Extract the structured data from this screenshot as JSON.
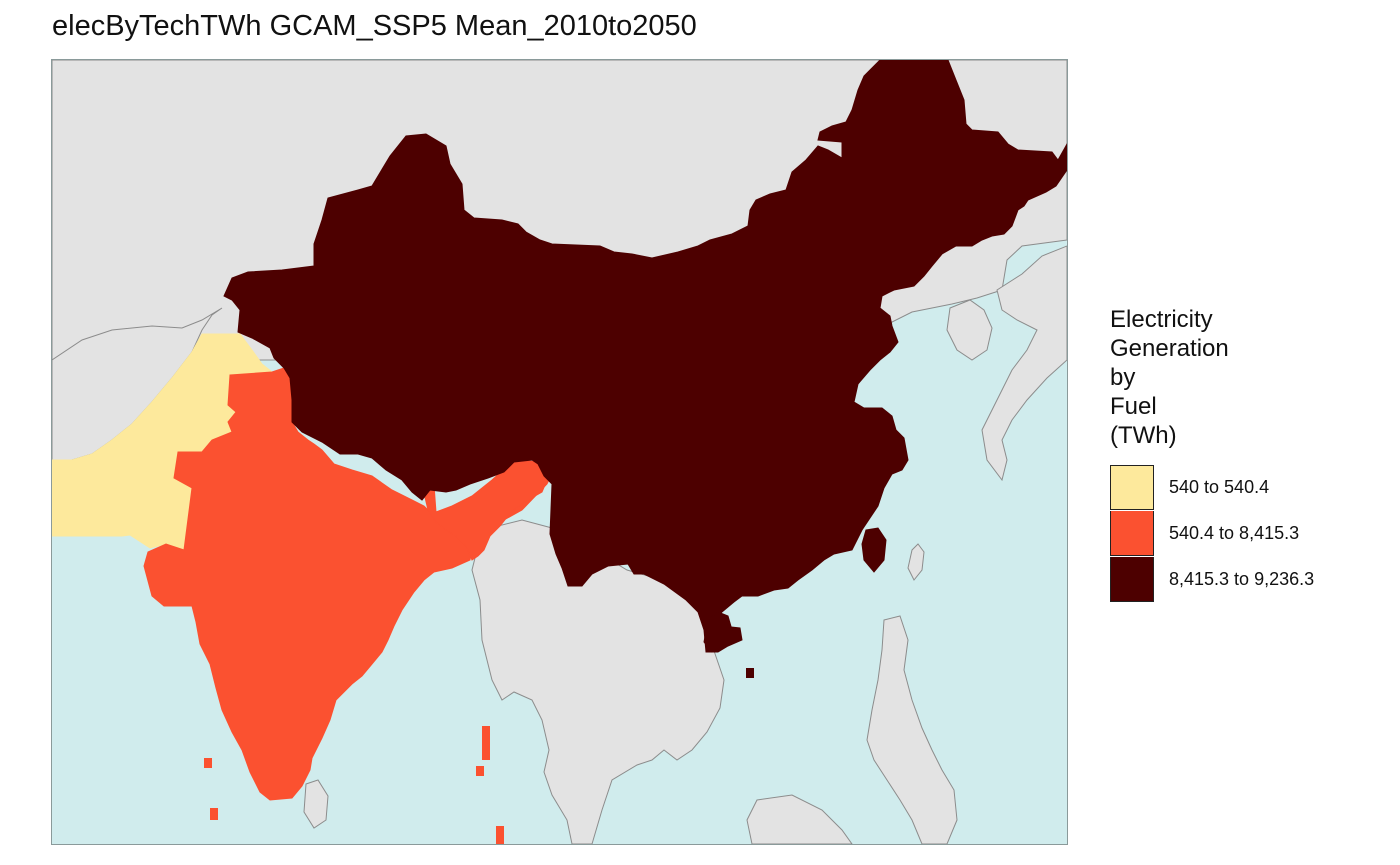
{
  "title": "elecByTechTWh GCAM_SSP5 Mean_2010to2050",
  "colors": {
    "ocean": "#d0eced",
    "land": "#e3e3e3",
    "border": "#8c8c8c",
    "low": "#fde99c",
    "mid": "#fb5130",
    "high": "#4d0000"
  },
  "legend": {
    "title": "Electricity\nGeneration\nby\nFuel\n(TWh)",
    "items": [
      {
        "label": "540 to 540.4",
        "color": "#fde99c"
      },
      {
        "label": "540.4 to 8,415.3",
        "color": "#fb5130"
      },
      {
        "label": "8,415.3 to 9,236.3",
        "color": "#4d0000"
      }
    ]
  },
  "regions": [
    {
      "name": "Pakistan",
      "class": "540 to 540.4"
    },
    {
      "name": "India",
      "class": "540.4 to 8,415.3"
    },
    {
      "name": "China",
      "class": "8,415.3 to 9,236.3"
    }
  ]
}
